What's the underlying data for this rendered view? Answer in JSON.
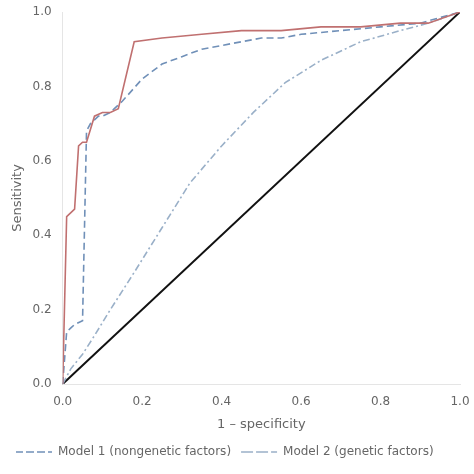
{
  "chart_data": {
    "type": "line",
    "xlabel": "1 – specificity",
    "ylabel": "Sensitivity",
    "xlim": [
      0.0,
      1.0
    ],
    "ylim": [
      0.0,
      1.0
    ],
    "xticks": [
      {
        "value": 0.0,
        "label": "0.0"
      },
      0.2,
      0.4,
      0.6,
      0.8,
      {
        "value": 1.0,
        "label": "1.0"
      }
    ],
    "yticks": [
      {
        "value": 0.0,
        "label": "0.0"
      },
      0.2,
      0.4,
      0.6,
      0.8,
      {
        "value": 1.0,
        "label": "1.0"
      }
    ],
    "grid": false,
    "legend": "bottom",
    "series": [
      {
        "color": "#111111",
        "line_style": "solid",
        "x": [
          0,
          1
        ],
        "values": [
          0,
          1
        ]
      },
      {
        "name": "Model 2 (genetic factors)",
        "color": "#9ab0c8",
        "line_style": "dashdot",
        "x": [
          0.0,
          0.02,
          0.05,
          0.08,
          0.12,
          0.18,
          0.25,
          0.32,
          0.4,
          0.48,
          0.56,
          0.65,
          0.75,
          0.85,
          0.92,
          1.0
        ],
        "values": [
          0.0,
          0.04,
          0.08,
          0.13,
          0.2,
          0.3,
          0.42,
          0.54,
          0.64,
          0.73,
          0.81,
          0.87,
          0.92,
          0.95,
          0.97,
          1.0
        ]
      },
      {
        "name": "Model 1 (nongenetic factors)",
        "color": "#7090b8",
        "line_style": "dashed",
        "x": [
          0.0,
          0.01,
          0.02,
          0.03,
          0.05,
          0.06,
          0.07,
          0.08,
          0.09,
          0.1,
          0.12,
          0.15,
          0.2,
          0.25,
          0.3,
          0.35,
          0.4,
          0.45,
          0.5,
          0.55,
          0.6,
          0.7,
          0.8,
          0.9,
          1.0
        ],
        "values": [
          0.0,
          0.14,
          0.15,
          0.16,
          0.17,
          0.68,
          0.7,
          0.71,
          0.72,
          0.72,
          0.73,
          0.76,
          0.82,
          0.86,
          0.88,
          0.9,
          0.91,
          0.92,
          0.93,
          0.93,
          0.94,
          0.95,
          0.96,
          0.97,
          1.0
        ]
      },
      {
        "color": "#c07070",
        "line_style": "solid",
        "x": [
          0.0,
          0.01,
          0.02,
          0.03,
          0.04,
          0.05,
          0.06,
          0.08,
          0.1,
          0.12,
          0.14,
          0.18,
          0.25,
          0.35,
          0.45,
          0.55,
          0.65,
          0.75,
          0.85,
          0.92,
          1.0
        ],
        "values": [
          0.0,
          0.45,
          0.46,
          0.47,
          0.64,
          0.65,
          0.65,
          0.72,
          0.73,
          0.73,
          0.74,
          0.92,
          0.93,
          0.94,
          0.95,
          0.95,
          0.96,
          0.96,
          0.97,
          0.97,
          1.0
        ]
      }
    ]
  }
}
